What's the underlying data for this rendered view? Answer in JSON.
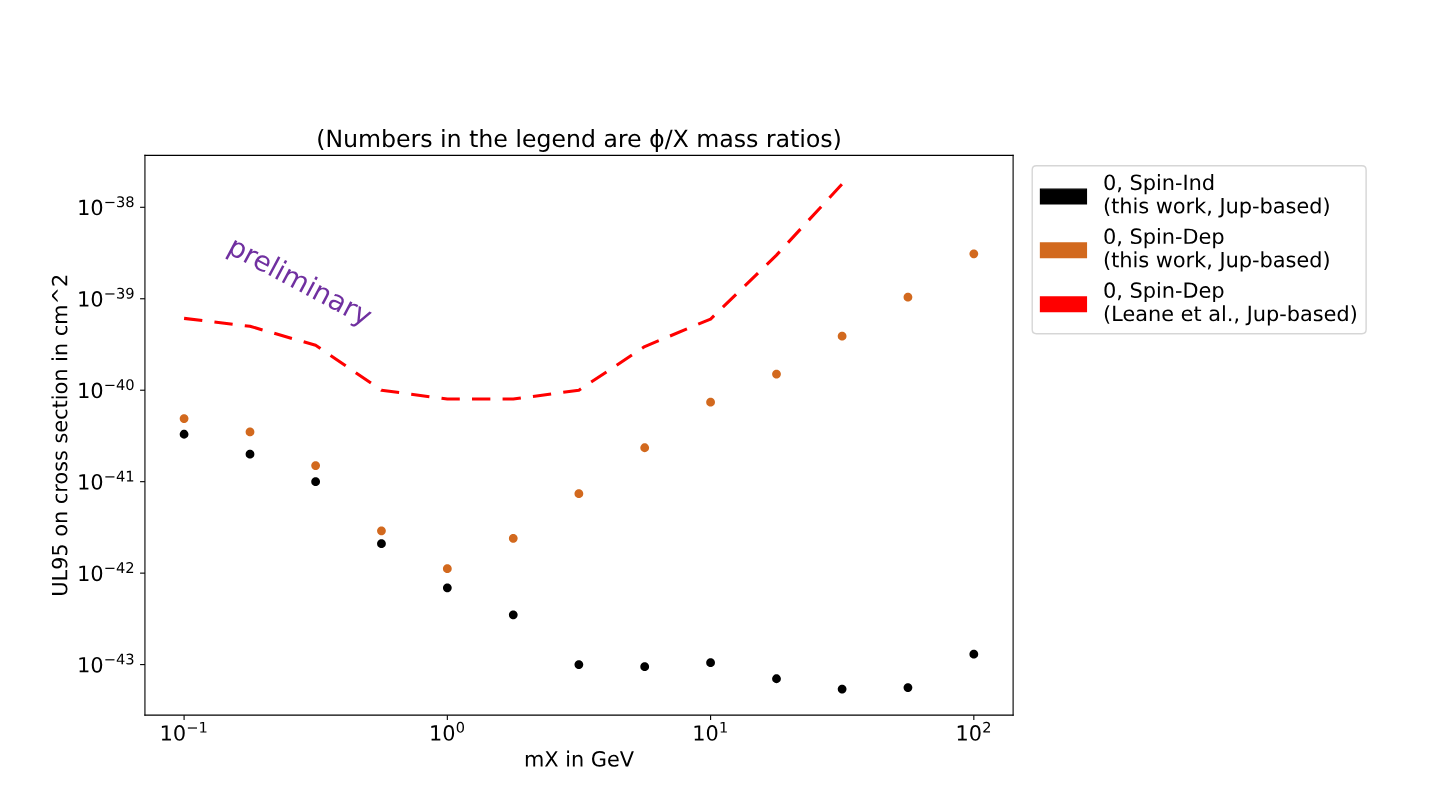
{
  "chart_data": {
    "type": "scatter",
    "title": "(Numbers in the legend are ϕ/X mass ratios)",
    "xlabel": "mX in GeV",
    "ylabel": "UL95 on cross section in cm^2",
    "x": [
      0.1,
      0.178,
      0.316,
      0.562,
      1,
      1.78,
      3.16,
      5.62,
      10,
      17.8,
      31.6,
      56.2,
      100
    ],
    "series": [
      {
        "name": "0, Spin-Ind\n(this work, Jup-based)",
        "marker": "circle",
        "color": "#000000",
        "values": [
          3.3e-41,
          2e-41,
          1e-41,
          2.1e-42,
          6.9e-43,
          3.5e-43,
          1e-43,
          9.5e-44,
          1.05e-43,
          7e-44,
          5.4e-44,
          5.6e-44,
          1.3e-43
        ]
      },
      {
        "name": "0, Spin-Dep\n(this work, Jup-based)",
        "marker": "circle",
        "color": "#d2691e",
        "values": [
          4.9e-41,
          3.5e-41,
          1.5e-41,
          2.9e-42,
          1.12e-42,
          2.4e-42,
          7.4e-42,
          2.35e-41,
          7.4e-41,
          1.5e-40,
          3.9e-40,
          1.04e-39,
          3.1e-39
        ]
      },
      {
        "name": "0, Spin-Dep\n(Leane et al., Jup-based)",
        "type": "line",
        "marker": "none",
        "line_style": "dashed",
        "color": "#ff0000",
        "x": [
          0.1,
          0.178,
          0.316,
          0.562,
          1,
          1.78,
          3.16,
          5.62,
          10,
          17.8,
          31.6
        ],
        "values": [
          6.1e-40,
          5e-40,
          3.1e-40,
          1e-40,
          8e-41,
          8e-41,
          1e-40,
          3e-40,
          6e-40,
          3e-39,
          1.8e-38
        ]
      }
    ],
    "log": "xy",
    "xlim": [
      0.071,
      141
    ],
    "ylim": [
      2.8e-44,
      3.7e-38
    ],
    "xticks": [
      {
        "value": 0.1,
        "label": "10$^{−1}$"
      },
      {
        "value": 1,
        "label": "10$^{0}$"
      },
      {
        "value": 10,
        "label": "10$^{1}$"
      },
      {
        "value": 100,
        "label": "10$^{2}$"
      }
    ],
    "yticks": [
      {
        "value": 1e-43,
        "label": "10$^{−43}$"
      },
      {
        "value": 1e-42,
        "label": "10$^{−42}$"
      },
      {
        "value": 1e-41,
        "label": "10$^{−41}$"
      },
      {
        "value": 1e-40,
        "label": "10$^{−40}$"
      },
      {
        "value": 1e-39,
        "label": "10$^{−39}$"
      },
      {
        "value": 1e-38,
        "label": "10$^{−38}$"
      }
    ],
    "annotations": [
      "preliminary"
    ],
    "grid": false,
    "legend": "top right"
  }
}
